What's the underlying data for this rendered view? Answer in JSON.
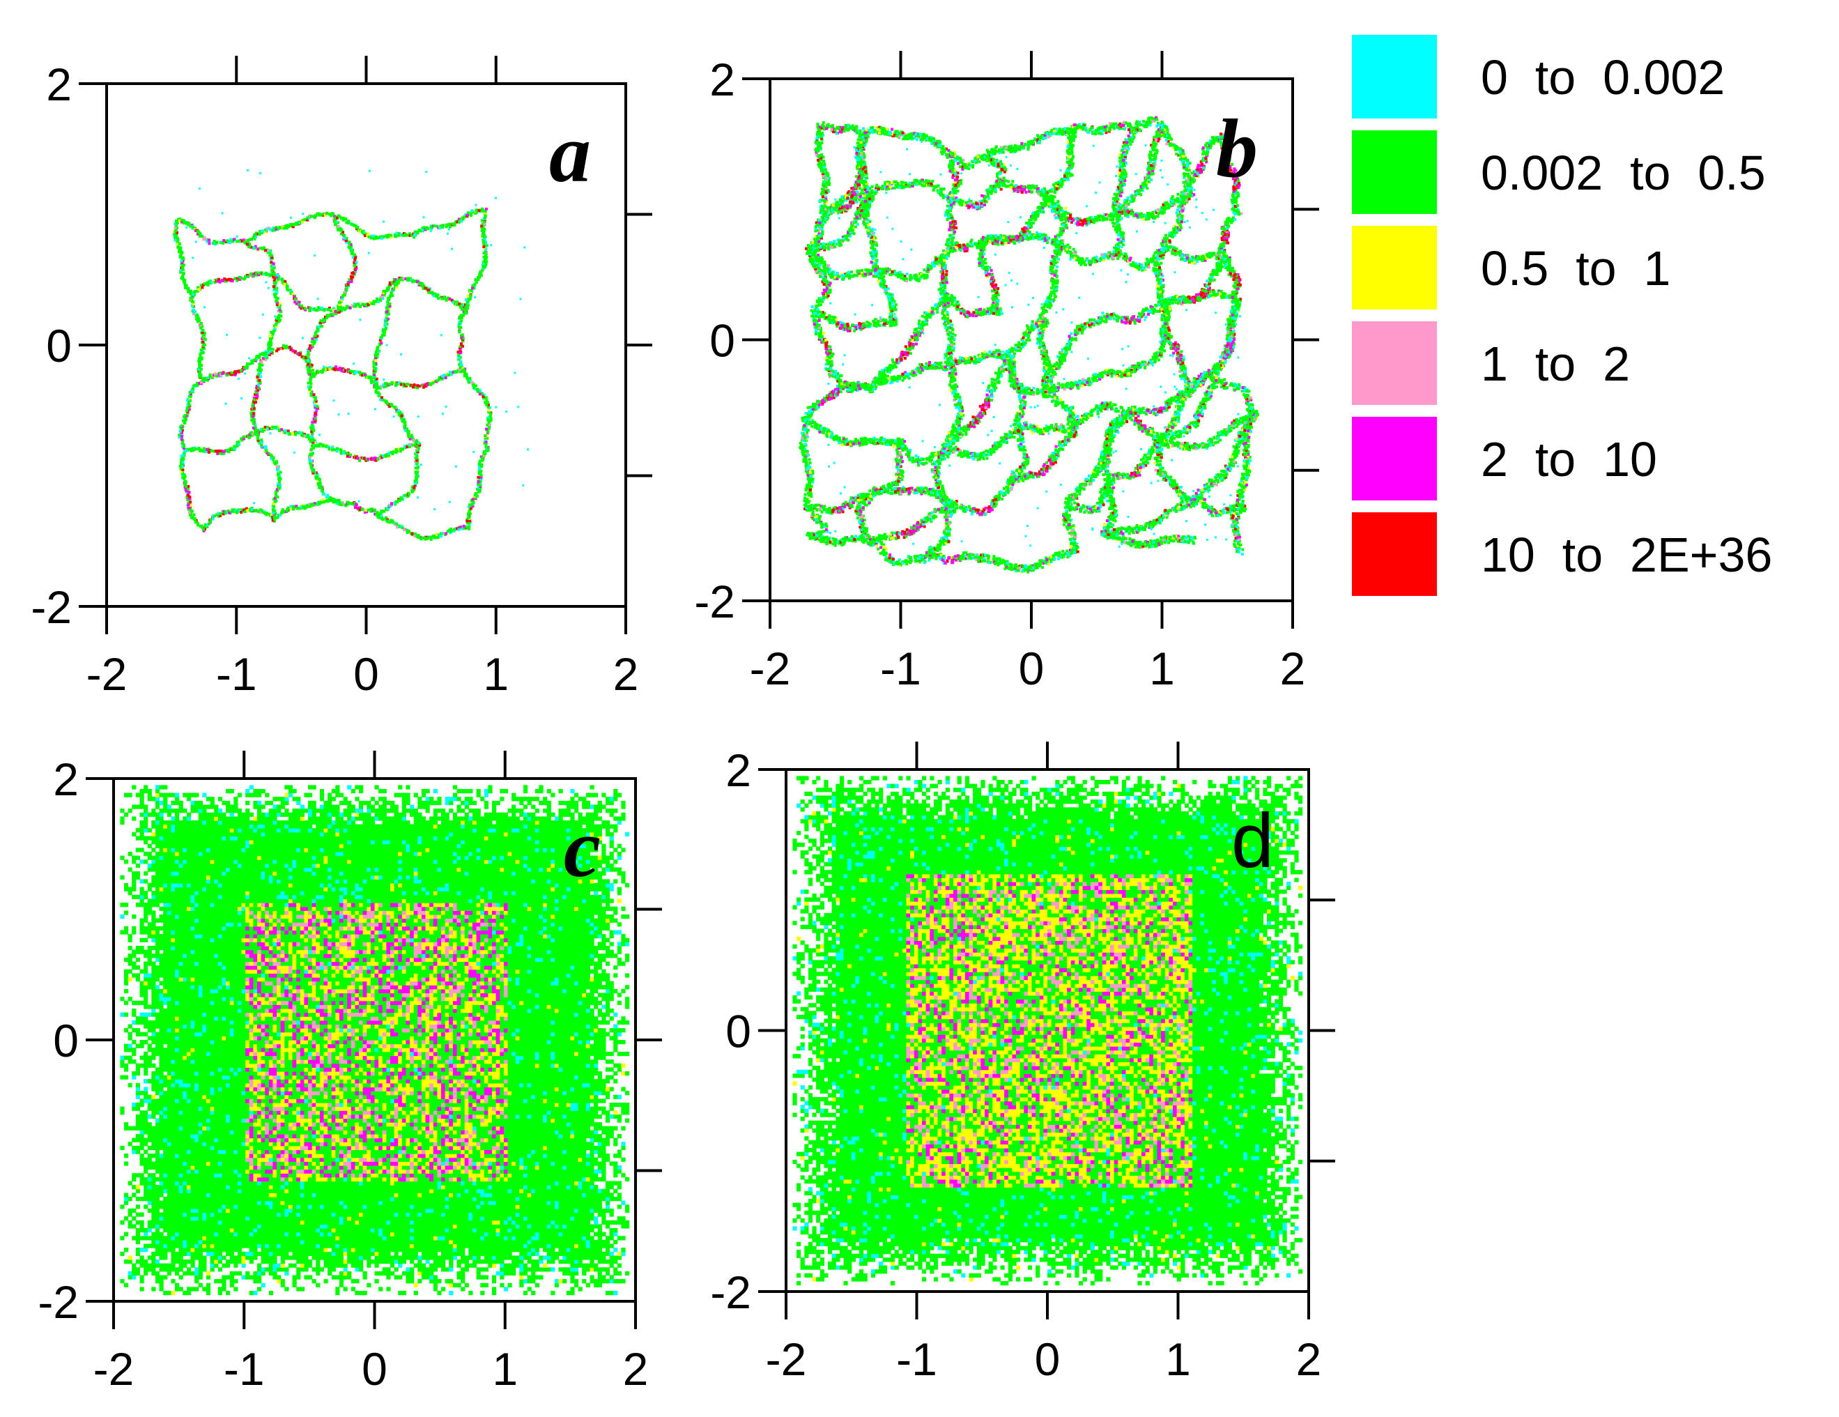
{
  "chart_data": [
    {
      "type": "scatter",
      "panel": "a",
      "panel_label": "a",
      "panel_label_style": "bold-italic",
      "xlim": [
        -2,
        2
      ],
      "ylim": [
        -2,
        2
      ],
      "x_ticks": [
        "-2",
        "-1",
        "0",
        "1",
        "2"
      ],
      "y_ticks": [
        "-2",
        "0",
        "2"
      ],
      "pattern": "sparse-network",
      "extent": {
        "x": [
          -1.4,
          1.3
        ],
        "y": [
          -1.3,
          1.35
        ]
      },
      "cell": 0.55,
      "density": 0.55,
      "composition": {
        "0 to 0.002": 0.12,
        "0.002 to 0.5": 0.7,
        "0.5 to 1": 0.04,
        "1 to 2": 0.03,
        "2 to 10": 0.05,
        "10 to 2E+36": 0.06
      }
    },
    {
      "type": "scatter",
      "panel": "b",
      "panel_label": "b",
      "panel_label_style": "bold-italic",
      "xlim": [
        -2,
        2
      ],
      "ylim": [
        -2,
        2
      ],
      "x_ticks": [
        "-2",
        "-1",
        "0",
        "1",
        "2"
      ],
      "y_ticks": [
        "-2",
        "0",
        "2"
      ],
      "pattern": "dense-network",
      "extent": {
        "x": [
          -1.6,
          1.6
        ],
        "y": [
          -1.6,
          1.55
        ]
      },
      "cell": 0.45,
      "density": 1.6,
      "composition": {
        "0 to 0.002": 0.15,
        "0.002 to 0.5": 0.7,
        "0.5 to 1": 0.03,
        "1 to 2": 0.03,
        "2 to 10": 0.05,
        "10 to 2E+36": 0.04
      }
    },
    {
      "type": "scatter",
      "panel": "c",
      "panel_label": "c",
      "panel_label_style": "bold-italic",
      "xlim": [
        -2,
        2
      ],
      "ylim": [
        -2,
        2
      ],
      "x_ticks": [
        "-2",
        "-1",
        "0",
        "1",
        "2"
      ],
      "y_ticks": [
        "-2",
        "0",
        "2"
      ],
      "pattern": "filled-square",
      "extent": {
        "x": [
          -1.95,
          1.95
        ],
        "y": [
          -1.95,
          1.95
        ]
      },
      "core": {
        "x": [
          -1.0,
          1.0
        ],
        "y": [
          -1.1,
          1.05
        ]
      },
      "composition_outer": {
        "0 to 0.002": 0.08,
        "0.002 to 0.5": 0.9,
        "0.5 to 1": 0.02
      },
      "composition_core": {
        "0.002 to 0.5": 0.35,
        "0.5 to 1": 0.3,
        "1 to 2": 0.15,
        "2 to 10": 0.2
      }
    },
    {
      "type": "scatter",
      "panel": "d",
      "panel_label": "d",
      "panel_label_style": "plain",
      "xlim": [
        -2,
        2
      ],
      "ylim": [
        -2,
        2
      ],
      "x_ticks": [
        "-2",
        "-1",
        "0",
        "1",
        "2"
      ],
      "y_ticks": [
        "-2",
        "0",
        "2"
      ],
      "pattern": "filled-square",
      "extent": {
        "x": [
          -1.95,
          1.95
        ],
        "y": [
          -1.95,
          1.95
        ]
      },
      "core": {
        "x": [
          -1.1,
          1.1
        ],
        "y": [
          -1.2,
          1.2
        ]
      },
      "composition_outer": {
        "0 to 0.002": 0.08,
        "0.002 to 0.5": 0.9,
        "0.5 to 1": 0.02
      },
      "composition_core": {
        "0.002 to 0.5": 0.3,
        "0.5 to 1": 0.42,
        "1 to 2": 0.15,
        "2 to 10": 0.13
      }
    }
  ],
  "legend": {
    "placement": "top-right",
    "entries": [
      {
        "label": "0  to  0.002",
        "color": "#00ffff"
      },
      {
        "label": "0.002  to  0.5",
        "color": "#00ff00"
      },
      {
        "label": "0.5  to  1",
        "color": "#ffff00"
      },
      {
        "label": "1  to  2",
        "color": "#ff99cc"
      },
      {
        "label": "2  to  10",
        "color": "#ff00ff"
      },
      {
        "label": "10  to  2E+36",
        "color": "#ff0000"
      }
    ]
  }
}
